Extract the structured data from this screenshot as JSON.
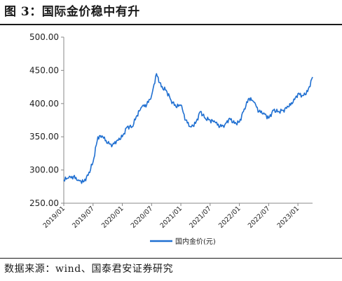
{
  "figure": {
    "title": "图 3：国际金价稳中有升",
    "source": "数据来源：wind、国泰君安证券研究"
  },
  "chart_data": {
    "type": "line",
    "title": "图 3：国际金价稳中有升",
    "xlabel": "",
    "ylabel": "",
    "ylim": [
      250,
      500
    ],
    "xlim": [
      "2019/01",
      "2023/04"
    ],
    "y_ticks": [
      "250.00",
      "300.00",
      "350.00",
      "400.00",
      "450.00",
      "500.00"
    ],
    "x_ticks": [
      "2019/01",
      "2019/07",
      "2020/01",
      "2020/07",
      "2021/01",
      "2021/07",
      "2022/01",
      "2022/07",
      "2023/01"
    ],
    "grid": false,
    "legend_position": "bottom",
    "colors": {
      "series": "#1f6fd1",
      "axis": "#888888"
    },
    "series": [
      {
        "name": "国内金价(元)",
        "x": [
          "2019/01",
          "2019/02",
          "2019/03",
          "2019/04",
          "2019/05",
          "2019/06",
          "2019/07",
          "2019/08",
          "2019/09",
          "2019/10",
          "2019/11",
          "2019/12",
          "2020/01",
          "2020/02",
          "2020/03",
          "2020/04",
          "2020/05",
          "2020/06",
          "2020/07",
          "2020/08",
          "2020/09",
          "2020/10",
          "2020/11",
          "2020/12",
          "2021/01",
          "2021/02",
          "2021/03",
          "2021/04",
          "2021/05",
          "2021/06",
          "2021/07",
          "2021/08",
          "2021/09",
          "2021/10",
          "2021/11",
          "2021/12",
          "2022/01",
          "2022/02",
          "2022/03",
          "2022/04",
          "2022/05",
          "2022/06",
          "2022/07",
          "2022/08",
          "2022/09",
          "2022/10",
          "2022/11",
          "2022/12",
          "2023/01",
          "2023/02",
          "2023/03",
          "2023/04"
        ],
        "values": [
          285,
          288,
          290,
          285,
          282,
          292,
          312,
          350,
          350,
          340,
          338,
          345,
          350,
          365,
          365,
          382,
          395,
          398,
          412,
          445,
          425,
          420,
          405,
          395,
          398,
          375,
          365,
          370,
          388,
          378,
          375,
          372,
          365,
          368,
          378,
          370,
          372,
          392,
          408,
          402,
          388,
          386,
          378,
          390,
          388,
          390,
          395,
          402,
          415,
          412,
          418,
          440
        ]
      }
    ]
  }
}
